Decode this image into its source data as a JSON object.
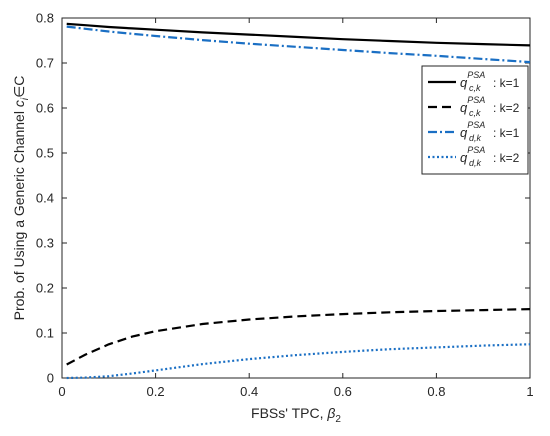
{
  "chart_data": {
    "type": "line",
    "xlabel": "FBSs' TPC, ",
    "xlabel_symbol": "β",
    "xlabel_sub": "2",
    "ylabel": "Prob. of Using a Generic Channel ",
    "ylabel_symbol": "c",
    "ylabel_sub": "i",
    "ylabel_tail": "∈C",
    "xlim": [
      0,
      1
    ],
    "ylim": [
      0,
      0.8
    ],
    "xticks": [
      0,
      0.2,
      0.4,
      0.6,
      0.8,
      1
    ],
    "xtick_labels": [
      "0",
      "0.2",
      "0.4",
      "0.6",
      "0.8",
      "1"
    ],
    "yticks": [
      0,
      0.1,
      0.2,
      0.3,
      0.4,
      0.5,
      0.6,
      0.7,
      0.8
    ],
    "ytick_labels": [
      "0",
      "0.1",
      "0.2",
      "0.3",
      "0.4",
      "0.5",
      "0.6",
      "0.7",
      "0.8"
    ],
    "grid": false,
    "legend_position": "top-right",
    "x": [
      0.01,
      0.05,
      0.1,
      0.15,
      0.2,
      0.3,
      0.4,
      0.5,
      0.6,
      0.7,
      0.8,
      0.9,
      1.0
    ],
    "series": [
      {
        "sym": "q",
        "sub": "c,k",
        "sup": "PSA",
        "label": ": k=1",
        "color": "#000000",
        "dash": "solid",
        "values": [
          0.787,
          0.784,
          0.78,
          0.777,
          0.774,
          0.768,
          0.763,
          0.758,
          0.753,
          0.749,
          0.745,
          0.742,
          0.739
        ]
      },
      {
        "sym": "q",
        "sub": "c,k",
        "sup": "PSA",
        "label": ": k=2",
        "color": "#000000",
        "dash": "dashed",
        "values": [
          0.03,
          0.052,
          0.075,
          0.092,
          0.104,
          0.12,
          0.13,
          0.137,
          0.142,
          0.146,
          0.149,
          0.151,
          0.153
        ]
      },
      {
        "sym": "q",
        "sub": "d,k",
        "sup": "PSA",
        "label": ": k=1",
        "color": "#1a6fc4",
        "dash": "dashdot",
        "values": [
          0.781,
          0.776,
          0.77,
          0.765,
          0.76,
          0.751,
          0.743,
          0.736,
          0.729,
          0.722,
          0.716,
          0.709,
          0.702
        ]
      },
      {
        "sym": "q",
        "sub": "d,k",
        "sup": "PSA",
        "label": ": k=2",
        "color": "#1a6fc4",
        "dash": "dotted",
        "values": [
          0.0,
          0.001,
          0.004,
          0.01,
          0.017,
          0.031,
          0.042,
          0.051,
          0.058,
          0.064,
          0.068,
          0.072,
          0.075
        ]
      }
    ]
  }
}
